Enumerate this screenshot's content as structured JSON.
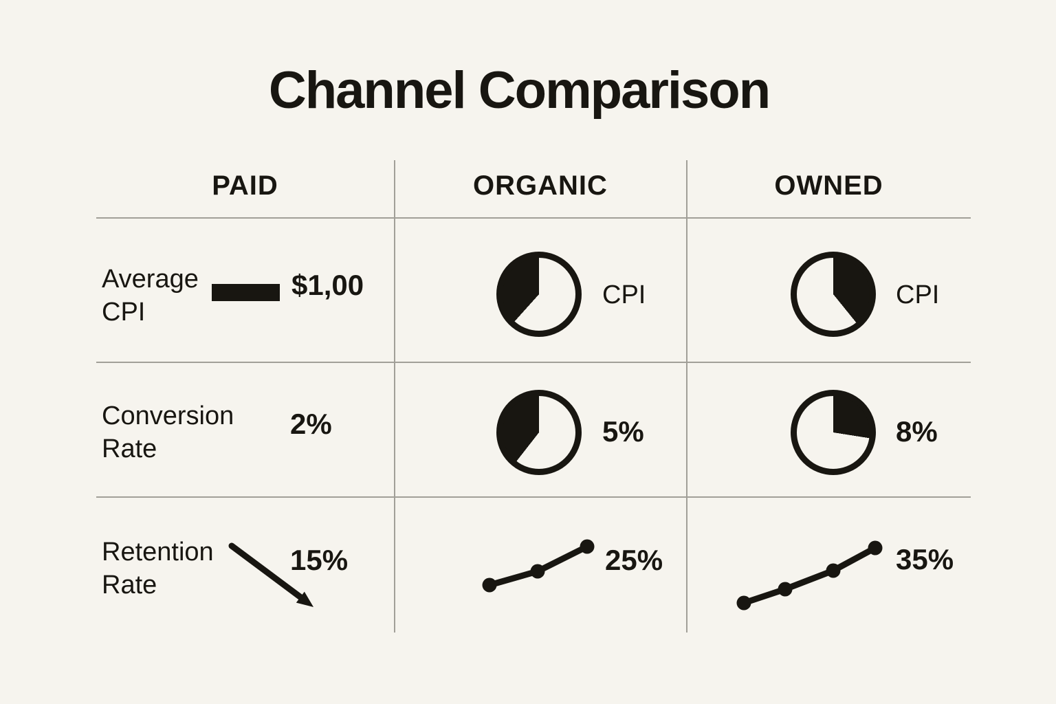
{
  "title": "Channel Comparison",
  "colors": {
    "background": "#f6f4ee",
    "ink": "#181611",
    "grid": "#a19f98"
  },
  "columns": [
    {
      "label": "PAID"
    },
    {
      "label": "ORGANIC"
    },
    {
      "label": "OWNED"
    }
  ],
  "rows": [
    {
      "label_line1": "Average",
      "label_line2": "CPI",
      "paid": {
        "glyph": "bar",
        "value": "$1,00"
      },
      "organic": {
        "glyph": "pie",
        "value": "CPI",
        "pie_start_deg": 222,
        "pie_end_deg": 360,
        "pie_filled_pct": 38
      },
      "owned": {
        "glyph": "pie",
        "value": "CPI",
        "pie_start_deg": 0,
        "pie_end_deg": 141,
        "pie_filled_pct": 39
      }
    },
    {
      "label_line1": "Conversion",
      "label_line2": "Rate",
      "paid": {
        "glyph": "none",
        "value": "2%"
      },
      "organic": {
        "glyph": "pie",
        "value": "5%",
        "pie_start_deg": 218,
        "pie_end_deg": 360,
        "pie_filled_pct": 39
      },
      "owned": {
        "glyph": "pie",
        "value": "8%",
        "pie_start_deg": 0,
        "pie_end_deg": 99,
        "pie_filled_pct": 28
      }
    },
    {
      "label_line1": "Retention",
      "label_line2": "Rate",
      "paid": {
        "glyph": "arrow-down-right",
        "value": "15%"
      },
      "organic": {
        "glyph": "trend-up-line",
        "value": "25%",
        "points": [
          [
            14,
            70
          ],
          [
            84,
            50
          ],
          [
            156,
            14
          ]
        ]
      },
      "owned": {
        "glyph": "trend-up-line",
        "value": "35%",
        "points": [
          [
            16,
            95
          ],
          [
            76,
            75
          ],
          [
            146,
            48
          ],
          [
            207,
            15
          ]
        ]
      }
    }
  ],
  "chart_data": {
    "type": "table",
    "title": "Channel Comparison",
    "columns": [
      "PAID",
      "ORGANIC",
      "OWNED"
    ],
    "row_labels": [
      "Average CPI",
      "Conversion Rate",
      "Retention Rate"
    ],
    "cells": [
      [
        "$1,00",
        "CPI",
        "CPI"
      ],
      [
        "2%",
        "5%",
        "8%"
      ],
      [
        "15%",
        "25%",
        "35%"
      ]
    ],
    "glyphs": [
      [
        "filled-bar",
        "pie-38pct-filled-left",
        "pie-39pct-filled-right"
      ],
      [
        "none",
        "pie-39pct-filled-left",
        "pie-28pct-filled-right"
      ],
      [
        "arrow-down-right",
        "rising-line-3-points",
        "rising-line-4-points"
      ]
    ],
    "legend_position": "none",
    "grid": "light-gray-dividers"
  }
}
